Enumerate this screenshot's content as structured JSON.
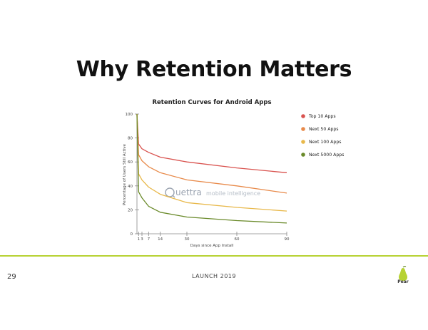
{
  "slide": {
    "title": "Why Retention Matters",
    "page_number": "29",
    "footer": "LAUNCH 2019",
    "logo_text": "Pear"
  },
  "watermark": {
    "brand": "uettra",
    "tagline": "mobile intelligence"
  },
  "colors": {
    "accent_line": "#b7d233",
    "top10": "#d9534f",
    "next50": "#e88a4a",
    "next100": "#e8b84a",
    "next5000": "#6a8a2a"
  },
  "chart_data": {
    "type": "line",
    "title": "Retention Curves for Android Apps",
    "xlabel": "Days since App Install",
    "ylabel": "Percentage of Users Still Active",
    "xlim": [
      0,
      90
    ],
    "ylim": [
      0,
      100
    ],
    "x_ticks": [
      1,
      3,
      7,
      14,
      30,
      60,
      90
    ],
    "y_ticks": [
      0,
      20,
      40,
      60,
      80,
      100
    ],
    "legend_position": "right",
    "series": [
      {
        "name": "Top 10 Apps",
        "color": "#d9534f",
        "x": [
          0,
          1,
          3,
          7,
          14,
          30,
          60,
          90
        ],
        "y": [
          100,
          75,
          71,
          68,
          64,
          60,
          55,
          51
        ]
      },
      {
        "name": "Next 50 Apps",
        "color": "#e88a4a",
        "x": [
          0,
          1,
          3,
          7,
          14,
          30,
          60,
          90
        ],
        "y": [
          100,
          66,
          61,
          56,
          51,
          45,
          40,
          34
        ]
      },
      {
        "name": "Next 100 Apps",
        "color": "#e8b84a",
        "x": [
          0,
          1,
          3,
          7,
          14,
          30,
          60,
          90
        ],
        "y": [
          100,
          50,
          45,
          39,
          33,
          26,
          22,
          19
        ]
      },
      {
        "name": "Next 5000 Apps",
        "color": "#6a8a2a",
        "x": [
          0,
          1,
          3,
          7,
          14,
          30,
          60,
          90
        ],
        "y": [
          100,
          35,
          30,
          23,
          18,
          14,
          11,
          9
        ]
      }
    ]
  }
}
